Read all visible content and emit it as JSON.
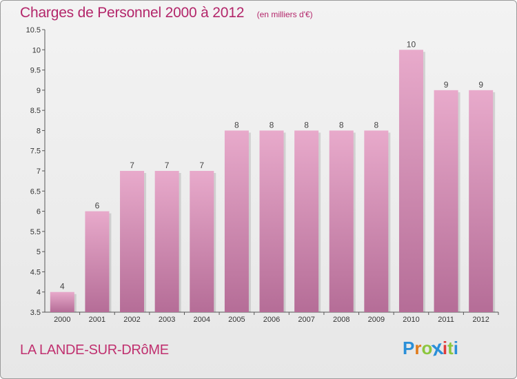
{
  "title": "Charges de Personnel 2000 à 2012",
  "subtitle": "(en milliers d'€)",
  "commune": "LA LANDE-SUR-DRôME",
  "logo": {
    "letters": [
      "P",
      "r",
      "o",
      "x",
      "i",
      "t",
      "i"
    ],
    "colors": [
      "#2a8fd8",
      "#e07b1a",
      "#8cc63e",
      "#2a8fd8",
      "#e03a3a",
      "#8cc63e",
      "#2a8fd8"
    ]
  },
  "colors": {
    "bar_top": "#e8aacb",
    "bar_bottom": "#b56d97",
    "title": "#b3266a"
  },
  "chart_data": {
    "type": "bar",
    "categories": [
      "2000",
      "2001",
      "2002",
      "2003",
      "2004",
      "2005",
      "2006",
      "2007",
      "2008",
      "2009",
      "2010",
      "2011",
      "2012"
    ],
    "values": [
      4,
      6,
      7,
      7,
      7,
      8,
      8,
      8,
      8,
      8,
      10,
      9,
      9
    ],
    "value_labels": [
      "4",
      "6",
      "7",
      "7",
      "7",
      "8",
      "8",
      "8",
      "8",
      "8",
      "10",
      "9",
      "9"
    ],
    "y_ticks": [
      "3.5",
      "4",
      "4.5",
      "5",
      "5.5",
      "6",
      "6.5",
      "7",
      "7.5",
      "8",
      "8.5",
      "9",
      "9.5",
      "10",
      "10.5"
    ],
    "ylim": [
      3.5,
      10.5
    ],
    "grid": false
  }
}
